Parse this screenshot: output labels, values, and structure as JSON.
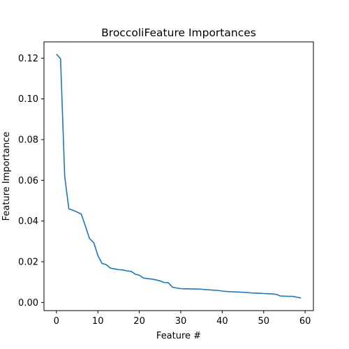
{
  "colors": {
    "line": "#1f77b4",
    "axes": "#000000",
    "background": "#ffffff"
  },
  "chart_data": {
    "type": "line",
    "title": "BroccoliFeature Importances",
    "xlabel": "Feature #",
    "ylabel": "Feature Importance",
    "xlim": [
      -3,
      62
    ],
    "ylim": [
      -0.004,
      0.128
    ],
    "grid": false,
    "xticks": [
      0,
      10,
      20,
      30,
      40,
      50,
      60
    ],
    "xtick_labels": [
      "0",
      "10",
      "20",
      "30",
      "40",
      "50",
      "60"
    ],
    "yticks": [
      0.0,
      0.02,
      0.04,
      0.06,
      0.08,
      0.1,
      0.12
    ],
    "ytick_labels": [
      "0.00",
      "0.02",
      "0.04",
      "0.06",
      "0.08",
      "0.10",
      "0.12"
    ],
    "series": [
      {
        "x": [
          0,
          1,
          2,
          3,
          4,
          5,
          6,
          7,
          8,
          9,
          10,
          11,
          12,
          13,
          14,
          15,
          16,
          17,
          18,
          19,
          20,
          21,
          22,
          23,
          24,
          25,
          26,
          27,
          28,
          29,
          30,
          31,
          32,
          33,
          34,
          35,
          36,
          37,
          38,
          39,
          40,
          41,
          42,
          43,
          44,
          45,
          46,
          47,
          48,
          49,
          50,
          51,
          52,
          53,
          54,
          55,
          56,
          57,
          58,
          59
        ],
        "values": [
          0.122,
          0.1197,
          0.062,
          0.046,
          0.0453,
          0.0444,
          0.0434,
          0.0375,
          0.0313,
          0.0295,
          0.0231,
          0.0192,
          0.0186,
          0.0169,
          0.0165,
          0.0161,
          0.016,
          0.0155,
          0.0153,
          0.0139,
          0.0134,
          0.012,
          0.0117,
          0.0115,
          0.0111,
          0.0106,
          0.0098,
          0.0097,
          0.0075,
          0.0071,
          0.0068,
          0.0067,
          0.0067,
          0.0066,
          0.0066,
          0.0065,
          0.0063,
          0.0062,
          0.006,
          0.0059,
          0.0056,
          0.0054,
          0.0053,
          0.0052,
          0.0051,
          0.005,
          0.0049,
          0.0047,
          0.0046,
          0.0045,
          0.0044,
          0.0043,
          0.0042,
          0.004,
          0.0032,
          0.0031,
          0.003,
          0.003,
          0.0026,
          0.0022
        ]
      }
    ]
  }
}
